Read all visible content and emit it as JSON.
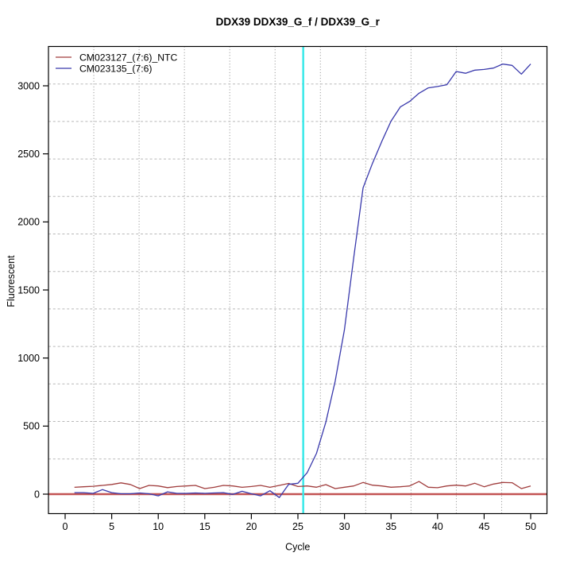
{
  "chart_data": {
    "type": "line",
    "title": "DDX39  DDX39_G_f / DDX39_G_r",
    "xlabel": "Cycle",
    "ylabel": "Fluorescent",
    "x_ticks": [
      0,
      5,
      10,
      15,
      20,
      25,
      30,
      35,
      40,
      45,
      50
    ],
    "y_ticks": [
      0,
      500,
      1000,
      1500,
      2000,
      2500,
      3000
    ],
    "xlim": [
      -1.8,
      52.1
    ],
    "ylim": [
      -146,
      3290
    ],
    "grid": {
      "style": "dotted",
      "v_cells": 11,
      "h_cells": 12,
      "v_color": "#8a8a8a",
      "h_color": "#b8b8b8"
    },
    "threshold_line": {
      "y": 0,
      "color": "#c25252",
      "width": 2.5
    },
    "ct_line": {
      "x": 25.57,
      "color": "#3ae9e9",
      "width": 2.5
    },
    "x": [
      1,
      2,
      3,
      4,
      5,
      6,
      7,
      8,
      9,
      10,
      11,
      12,
      13,
      14,
      15,
      16,
      17,
      18,
      19,
      20,
      21,
      22,
      23,
      24,
      25,
      26,
      27,
      28,
      29,
      30,
      31,
      32,
      33,
      34,
      35,
      36,
      37,
      38,
      39,
      40,
      41,
      42,
      43,
      44,
      45,
      46,
      47,
      48,
      49,
      50
    ],
    "series": [
      {
        "name": "CM023127_(7:6)_NTC",
        "color": "#a03c3c",
        "values": [
          50,
          54,
          58,
          64,
          71,
          83,
          71,
          41,
          64,
          60,
          48,
          56,
          60,
          64,
          41,
          50,
          64,
          60,
          50,
          56,
          64,
          50,
          64,
          79,
          56,
          60,
          51,
          70,
          41,
          51,
          60,
          86,
          66,
          60,
          51,
          54,
          60,
          93,
          51,
          47,
          60,
          66,
          60,
          80,
          54,
          74,
          86,
          84,
          41,
          60
        ]
      },
      {
        "name": "CM023135_(7:6)",
        "color": "#3939ac",
        "values": [
          11,
          11,
          6,
          33,
          11,
          3,
          3,
          9,
          3,
          -12,
          17,
          6,
          6,
          9,
          6,
          9,
          11,
          -2,
          21,
          3,
          -12,
          25,
          -25,
          72,
          80,
          158,
          300,
          530,
          830,
          1210,
          1740,
          2250,
          2430,
          2590,
          2740,
          2845,
          2885,
          2945,
          2985,
          2995,
          3008,
          3105,
          3092,
          3115,
          3120,
          3130,
          3160,
          3150,
          3086,
          3160
        ]
      }
    ],
    "legend_position": "top-left"
  }
}
